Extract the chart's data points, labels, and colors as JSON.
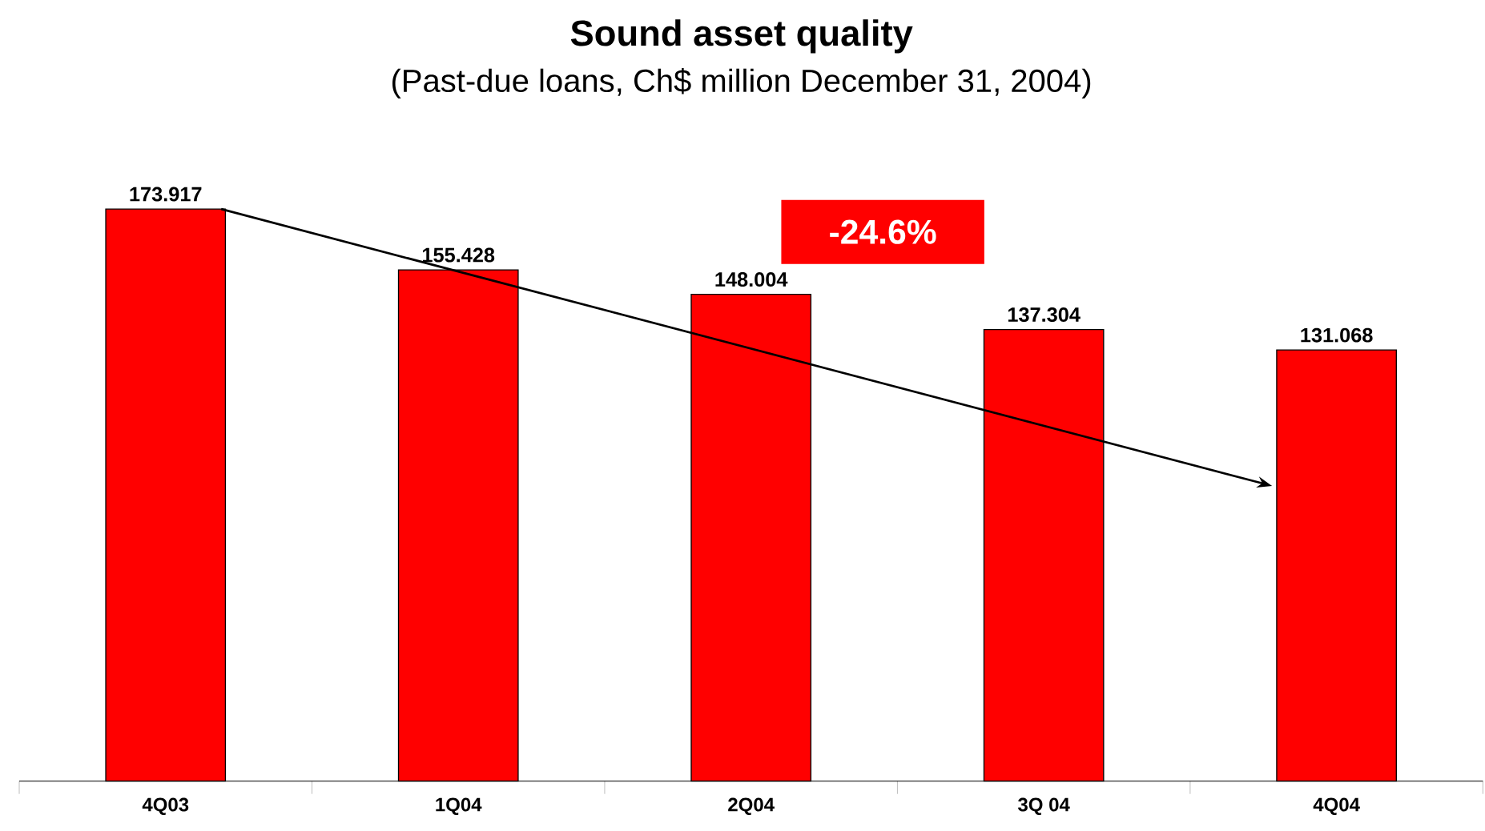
{
  "chart_data": {
    "type": "bar",
    "title": "Sound asset quality",
    "subtitle": "(Past-due loans, Ch$ million December 31, 2004)",
    "categories": [
      "4Q03",
      "1Q04",
      "2Q04",
      "3Q 04",
      "4Q04"
    ],
    "values": [
      173.917,
      155.428,
      148.004,
      137.304,
      131.068
    ],
    "color": "#ff0000",
    "data_labels": true,
    "tick_labels": "x",
    "annotations": [
      "-24.6%"
    ]
  }
}
